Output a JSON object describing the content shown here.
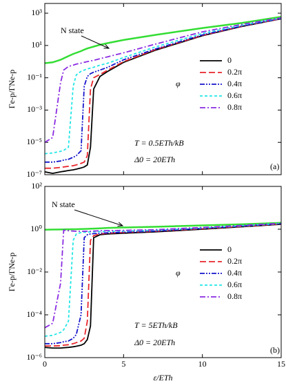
{
  "chart_data": [
    {
      "type": "line",
      "ylabel": "Γe-p/ΓNe-p",
      "log_y": true,
      "ylim": [
        1e-07,
        4000
      ],
      "yticks": [
        {
          "value": 1000,
          "label": "10³"
        },
        {
          "value": 10,
          "label": "10¹"
        },
        {
          "value": 0.1,
          "label": "10⁻¹"
        },
        {
          "value": 0.001,
          "label": "10⁻³"
        },
        {
          "value": 1e-05,
          "label": "10⁻⁵"
        },
        {
          "value": 1e-07,
          "label": "10⁻⁷"
        }
      ],
      "xlim": [
        0,
        15
      ],
      "xticks": [
        0,
        5,
        10,
        15
      ],
      "legend_title": "φ",
      "annotations": [
        "N state",
        "T = 0.5ETh/kB",
        "Δ0 = 20ETh",
        "(a)"
      ],
      "x": [
        0,
        0.5,
        1,
        1.2,
        1.5,
        1.8,
        2,
        2.3,
        2.5,
        2.7,
        2.9,
        3.1,
        3.5,
        4,
        5,
        7,
        10,
        12.5,
        15
      ],
      "series": [
        {
          "name": "N state",
          "legend": false,
          "color": "#33dd33",
          "dash": "solid",
          "values": [
            0.8,
            0.9,
            1.3,
            1.6,
            2.2,
            3,
            3.5,
            4.5,
            5.5,
            6.5,
            7.5,
            8.5,
            11,
            14,
            22,
            45,
            120,
            250,
            600
          ]
        },
        {
          "name": "0",
          "color": "#000000",
          "dash": "solid",
          "values": [
            1.5e-07,
            1.2e-07,
            1.5e-07,
            1.6e-07,
            1.8e-07,
            2e-07,
            2.2e-07,
            2.6e-07,
            3e-07,
            4e-07,
            5e-06,
            0.02,
            0.12,
            0.25,
            0.9,
            5,
            40,
            150,
            450
          ]
        },
        {
          "name": "0.2π",
          "color": "#e8262b",
          "dash": "dashed",
          "values": [
            2.5e-07,
            2.5e-07,
            2.8e-07,
            3e-07,
            3.3e-07,
            3.6e-07,
            4e-07,
            5e-07,
            6e-07,
            1.5e-06,
            0.02,
            0.1,
            0.16,
            0.3,
            1,
            5.5,
            42,
            155,
            460
          ]
        },
        {
          "name": "0.4π",
          "color": "#1414cc",
          "dash": "dashdotdot",
          "values": [
            6e-07,
            6e-07,
            7e-07,
            8e-07,
            9e-07,
            1.2e-06,
            1.5e-06,
            3e-06,
            0.03,
            0.12,
            0.18,
            0.22,
            0.3,
            0.45,
            1.3,
            6,
            45,
            160,
            470
          ]
        },
        {
          "name": "0.6π",
          "color": "#22e6e6",
          "dash": "shortdash",
          "values": [
            2e-06,
            2.2e-06,
            2.8e-06,
            3.2e-06,
            5e-06,
            0.03,
            0.15,
            0.25,
            0.3,
            0.35,
            0.4,
            0.45,
            0.6,
            0.8,
            1.8,
            8,
            55,
            180,
            500
          ]
        },
        {
          "name": "0.8π",
          "color": "#8a2be2",
          "dash": "dashdot",
          "values": [
            1e-05,
            2e-05,
            0.05,
            0.3,
            0.5,
            0.6,
            0.7,
            0.8,
            0.9,
            1,
            1.1,
            1.2,
            1.5,
            2,
            3.5,
            12,
            70,
            200,
            520
          ]
        }
      ]
    },
    {
      "type": "line",
      "ylabel": "Γe-p/ΓNe-p",
      "xlabel": "ε/ETh",
      "log_y": true,
      "ylim": [
        1e-06,
        100
      ],
      "yticks": [
        {
          "value": 100,
          "label": "10²"
        },
        {
          "value": 1,
          "label": "10⁰"
        },
        {
          "value": 0.01,
          "label": "10⁻²"
        },
        {
          "value": 0.0001,
          "label": "10⁻⁴"
        },
        {
          "value": 1e-06,
          "label": "10⁻⁶"
        }
      ],
      "xlim": [
        0,
        15
      ],
      "xticks": [
        0,
        5,
        10,
        15
      ],
      "legend_title": "φ",
      "annotations": [
        "N state",
        "T = 5ETh/kB",
        "Δ0 = 20ETh",
        "(b)"
      ],
      "x": [
        0,
        0.5,
        1,
        1.2,
        1.5,
        1.8,
        2,
        2.3,
        2.5,
        2.7,
        2.9,
        3.1,
        3.5,
        4,
        5,
        7,
        10,
        12.5,
        15
      ],
      "series": [
        {
          "name": "N state",
          "legend": false,
          "color": "#33dd33",
          "dash": "solid",
          "values": [
            0.95,
            0.96,
            0.97,
            0.98,
            0.99,
            1,
            1,
            1.02,
            1.03,
            1.04,
            1.05,
            1.07,
            1.1,
            1.15,
            1.2,
            1.3,
            1.5,
            1.7,
            2
          ]
        },
        {
          "name": "0",
          "color": "#000000",
          "dash": "solid",
          "values": [
            3e-06,
            2.8e-06,
            2.8e-06,
            2.9e-06,
            3e-06,
            3.2e-06,
            3.4e-06,
            3.8e-06,
            4.5e-06,
            7e-06,
            3e-05,
            0.4,
            0.55,
            0.6,
            0.65,
            0.75,
            1,
            1.3,
            1.7
          ]
        },
        {
          "name": "0.2π",
          "color": "#e8262b",
          "dash": "dashed",
          "values": [
            3.5e-06,
            3.5e-06,
            3.6e-06,
            3.8e-06,
            4e-06,
            4.5e-06,
            5e-06,
            6e-06,
            8e-06,
            5e-05,
            0.3,
            0.5,
            0.6,
            0.65,
            0.7,
            0.8,
            1.05,
            1.35,
            1.75
          ]
        },
        {
          "name": "0.4π",
          "color": "#1414cc",
          "dash": "dashdotdot",
          "values": [
            4.5e-06,
            4.5e-06,
            5e-06,
            5.5e-06,
            6e-06,
            8e-06,
            1.2e-05,
            0.0001,
            0.4,
            0.55,
            0.6,
            0.62,
            0.65,
            0.68,
            0.72,
            0.82,
            1.1,
            1.4,
            1.8
          ]
        },
        {
          "name": "0.6π",
          "color": "#22e6e6",
          "dash": "shortdash",
          "values": [
            1e-05,
            1.1e-05,
            1.5e-05,
            2e-05,
            5e-05,
            0.3,
            0.6,
            0.7,
            0.72,
            0.74,
            0.75,
            0.76,
            0.78,
            0.8,
            0.82,
            0.9,
            1.15,
            1.45,
            1.85
          ]
        },
        {
          "name": "0.8π",
          "color": "#8a2be2",
          "dash": "dashdot",
          "values": [
            2.5e-05,
            4e-05,
            0.003,
            0.9,
            0.85,
            0.82,
            0.8,
            0.8,
            0.8,
            0.8,
            0.8,
            0.82,
            0.84,
            0.86,
            0.88,
            0.95,
            1.2,
            1.5,
            1.9
          ]
        }
      ]
    }
  ]
}
